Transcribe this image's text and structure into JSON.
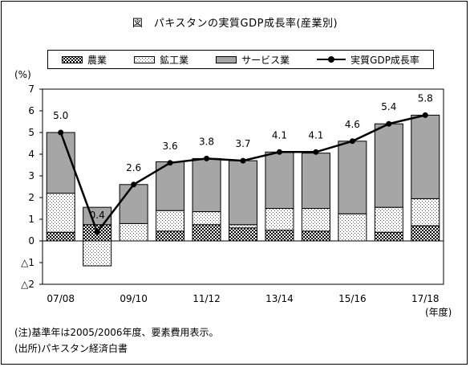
{
  "title": "図　パキスタンの実質GDP成長率(産業別)",
  "unit_label": "(%)",
  "x_unit_label": "(年度)",
  "notes": [
    "(注)基準年は2005/2006年度、要素費用表示。",
    "(出所)パキスタン経済白書"
  ],
  "legend": [
    {
      "label": "農業",
      "kind": "agri"
    },
    {
      "label": "鉱工業",
      "kind": "mining"
    },
    {
      "label": "サービス業",
      "kind": "service"
    },
    {
      "label": "実質GDP成長率",
      "kind": "line"
    }
  ],
  "colors": {
    "service": "#a6a6a6",
    "line": "#000000",
    "frame": "#000000"
  },
  "chart_data": {
    "type": "bar",
    "stacked": true,
    "title": "図　パキスタンの実質GDP成長率(産業別)",
    "xlabel": "(年度)",
    "ylabel": "(%)",
    "ylim": [
      -2,
      7
    ],
    "yticks": [
      7,
      6,
      5,
      4,
      3,
      2,
      1,
      0,
      "△1",
      "△2"
    ],
    "categories": [
      "07/08",
      "08/09",
      "09/10",
      "10/11",
      "11/12",
      "12/13",
      "13/14",
      "14/15",
      "15/16",
      "16/17",
      "17/18"
    ],
    "x_tick_labels": [
      "07/08",
      "",
      "09/10",
      "",
      "11/12",
      "",
      "13/14",
      "",
      "15/16",
      "",
      "17/18"
    ],
    "series": [
      {
        "name": "農業",
        "type": "bar",
        "values": [
          0.4,
          0.75,
          0.0,
          0.45,
          0.75,
          0.6,
          0.5,
          0.45,
          0.0,
          0.4,
          0.7
        ]
      },
      {
        "name": "鉱工業",
        "type": "bar",
        "values": [
          1.8,
          -1.15,
          0.8,
          0.95,
          0.6,
          0.15,
          1.0,
          1.05,
          1.25,
          1.15,
          1.25
        ]
      },
      {
        "name": "サービス業",
        "type": "bar",
        "values": [
          2.8,
          0.8,
          1.8,
          2.25,
          2.45,
          2.95,
          2.6,
          2.55,
          3.35,
          3.85,
          3.85
        ]
      },
      {
        "name": "実質GDP成長率",
        "type": "line",
        "values": [
          5.0,
          0.4,
          2.6,
          3.6,
          3.8,
          3.7,
          4.1,
          4.1,
          4.6,
          5.4,
          5.8
        ]
      }
    ],
    "data_labels": [
      "5.0",
      "0.4",
      "2.6",
      "3.6",
      "3.8",
      "3.7",
      "4.1",
      "4.1",
      "4.6",
      "5.4",
      "5.8"
    ],
    "grid": false,
    "legend_position": "top"
  }
}
